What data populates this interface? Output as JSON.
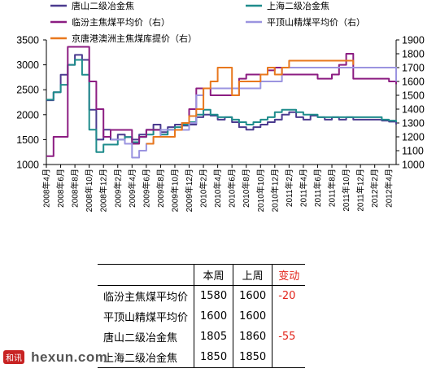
{
  "chart_data": {
    "type": "line",
    "title": "",
    "x_tick_labels": [
      "2008年4月",
      "2008年6月",
      "2008年8月",
      "2008年10月",
      "2008年12月",
      "2009年2月",
      "2009年4月",
      "2009年6月",
      "2009年8月",
      "2009年10月",
      "2009年12月",
      "2010年2月",
      "2010年4月",
      "2010年6月",
      "2010年8月",
      "2010年10月",
      "2010年12月",
      "2011年2月",
      "2011年4月",
      "2011年6月",
      "2011年8月",
      "2011年10月",
      "2011年12月",
      "2012年2月",
      "2012年4月"
    ],
    "x_start": "2008-04",
    "x_end": "2012-05",
    "y_left": {
      "ylim": [
        1000,
        3500
      ],
      "ticks": [
        "1000",
        "1500",
        "2000",
        "2500",
        "3000",
        "3500"
      ]
    },
    "y_right": {
      "ylim": [
        1000,
        1900
      ],
      "ticks": [
        "1000",
        "1100",
        "1200",
        "1300",
        "1400",
        "1500",
        "1600",
        "1700",
        "1800",
        "1900"
      ]
    },
    "grid": false,
    "legend_position": "top",
    "series": [
      {
        "name": "唐山二级冶金焦",
        "color": "#4b3b8f",
        "axis": "left",
        "points": [
          [
            "2008-04",
            2290
          ],
          [
            "2008-05",
            2450
          ],
          [
            "2008-06",
            2800
          ],
          [
            "2008-07",
            3000
          ],
          [
            "2008-08",
            3200
          ],
          [
            "2008-09",
            3100
          ],
          [
            "2008-10",
            2100
          ],
          [
            "2008-11",
            1500
          ],
          [
            "2008-12",
            1700
          ],
          [
            "2009-01",
            1500
          ],
          [
            "2009-02",
            1600
          ],
          [
            "2009-03",
            1550
          ],
          [
            "2009-04",
            1500
          ],
          [
            "2009-05",
            1600
          ],
          [
            "2009-06",
            1700
          ],
          [
            "2009-07",
            1800
          ],
          [
            "2009-08",
            1650
          ],
          [
            "2009-09",
            1750
          ],
          [
            "2009-10",
            1800
          ],
          [
            "2009-11",
            1780
          ],
          [
            "2009-12",
            1800
          ],
          [
            "2010-01",
            1950
          ],
          [
            "2010-02",
            2000
          ],
          [
            "2010-03",
            1980
          ],
          [
            "2010-04",
            1900
          ],
          [
            "2010-05",
            1950
          ],
          [
            "2010-06",
            1850
          ],
          [
            "2010-07",
            1750
          ],
          [
            "2010-08",
            1700
          ],
          [
            "2010-09",
            1750
          ],
          [
            "2010-10",
            1800
          ],
          [
            "2010-11",
            1850
          ],
          [
            "2010-12",
            1900
          ],
          [
            "2011-01",
            2000
          ],
          [
            "2011-02",
            2050
          ],
          [
            "2011-03",
            1950
          ],
          [
            "2011-04",
            1900
          ],
          [
            "2011-05",
            1980
          ],
          [
            "2011-06",
            1950
          ],
          [
            "2011-07",
            1900
          ],
          [
            "2011-08",
            1950
          ],
          [
            "2011-09",
            1900
          ],
          [
            "2011-10",
            1950
          ],
          [
            "2011-11",
            1900
          ],
          [
            "2011-12",
            1900
          ],
          [
            "2012-01",
            1900
          ],
          [
            "2012-02",
            1900
          ],
          [
            "2012-03",
            1880
          ],
          [
            "2012-04",
            1860
          ],
          [
            "2012-05",
            1805
          ]
        ]
      },
      {
        "name": "上海二级冶金焦",
        "color": "#1f8c8c",
        "axis": "left",
        "points": [
          [
            "2008-04",
            2300
          ],
          [
            "2008-05",
            2450
          ],
          [
            "2008-06",
            2600
          ],
          [
            "2008-07",
            3000
          ],
          [
            "2008-08",
            3100
          ],
          [
            "2008-09",
            2800
          ],
          [
            "2008-10",
            1700
          ],
          [
            "2008-11",
            1250
          ],
          [
            "2008-12",
            1400
          ],
          [
            "2009-01",
            1400
          ],
          [
            "2009-02",
            1500
          ],
          [
            "2009-03",
            1550
          ],
          [
            "2009-04",
            1450
          ],
          [
            "2009-05",
            1550
          ],
          [
            "2009-06",
            1600
          ],
          [
            "2009-07",
            1700
          ],
          [
            "2009-08",
            1600
          ],
          [
            "2009-09",
            1700
          ],
          [
            "2009-10",
            1750
          ],
          [
            "2009-11",
            1800
          ],
          [
            "2009-12",
            1850
          ],
          [
            "2010-01",
            2000
          ],
          [
            "2010-02",
            2100
          ],
          [
            "2010-03",
            2000
          ],
          [
            "2010-04",
            1950
          ],
          [
            "2010-05",
            1950
          ],
          [
            "2010-06",
            1900
          ],
          [
            "2010-07",
            1850
          ],
          [
            "2010-08",
            1800
          ],
          [
            "2010-09",
            1850
          ],
          [
            "2010-10",
            1900
          ],
          [
            "2010-11",
            1950
          ],
          [
            "2010-12",
            2050
          ],
          [
            "2011-01",
            2100
          ],
          [
            "2011-02",
            2100
          ],
          [
            "2011-03",
            2050
          ],
          [
            "2011-04",
            2000
          ],
          [
            "2011-05",
            2000
          ],
          [
            "2011-06",
            1950
          ],
          [
            "2011-07",
            1950
          ],
          [
            "2011-08",
            1950
          ],
          [
            "2011-09",
            1950
          ],
          [
            "2011-10",
            1950
          ],
          [
            "2011-11",
            1950
          ],
          [
            "2011-12",
            1950
          ],
          [
            "2012-01",
            1950
          ],
          [
            "2012-02",
            1950
          ],
          [
            "2012-03",
            1900
          ],
          [
            "2012-04",
            1880
          ],
          [
            "2012-05",
            1850
          ]
        ]
      },
      {
        "name": "临汾主焦煤平均价（右）",
        "color": "#8c1d82",
        "axis": "right",
        "points": [
          [
            "2008-04",
            1060
          ],
          [
            "2008-05",
            1200
          ],
          [
            "2008-06",
            1200
          ],
          [
            "2008-07",
            1200
          ],
          [
            "2008-07",
            1850
          ],
          [
            "2008-08",
            1850
          ],
          [
            "2008-09",
            1850
          ],
          [
            "2008-10",
            1600
          ],
          [
            "2008-11",
            1400
          ],
          [
            "2008-12",
            1200
          ],
          [
            "2009-01",
            1250
          ],
          [
            "2009-02",
            1250
          ],
          [
            "2009-03",
            1250
          ],
          [
            "2009-04",
            1150
          ],
          [
            "2009-05",
            1200
          ],
          [
            "2009-06",
            1250
          ],
          [
            "2009-07",
            1250
          ],
          [
            "2009-08",
            1250
          ],
          [
            "2009-09",
            1250
          ],
          [
            "2009-10",
            1250
          ],
          [
            "2009-11",
            1300
          ],
          [
            "2009-12",
            1400
          ],
          [
            "2010-01",
            1550
          ],
          [
            "2010-02",
            1550
          ],
          [
            "2010-03",
            1500
          ],
          [
            "2010-04",
            1500
          ],
          [
            "2010-05",
            1500
          ],
          [
            "2010-06",
            1500
          ],
          [
            "2010-07",
            1620
          ],
          [
            "2010-08",
            1650
          ],
          [
            "2010-09",
            1650
          ],
          [
            "2010-10",
            1650
          ],
          [
            "2010-11",
            1680
          ],
          [
            "2010-12",
            1700
          ],
          [
            "2011-01",
            1650
          ],
          [
            "2011-02",
            1650
          ],
          [
            "2011-03",
            1650
          ],
          [
            "2011-04",
            1650
          ],
          [
            "2011-05",
            1650
          ],
          [
            "2011-06",
            1620
          ],
          [
            "2011-07",
            1620
          ],
          [
            "2011-08",
            1650
          ],
          [
            "2011-09",
            1720
          ],
          [
            "2011-10",
            1800
          ],
          [
            "2011-11",
            1620
          ],
          [
            "2011-12",
            1620
          ],
          [
            "2012-01",
            1620
          ],
          [
            "2012-02",
            1620
          ],
          [
            "2012-03",
            1620
          ],
          [
            "2012-04",
            1600
          ],
          [
            "2012-05",
            1580
          ]
        ]
      },
      {
        "name": "平顶山精煤平均价（右）",
        "color": "#9b94e0",
        "axis": "right",
        "points": [
          [
            "2009-01",
            1180
          ],
          [
            "2009-02",
            1180
          ],
          [
            "2009-03",
            1150
          ],
          [
            "2009-04",
            1050
          ],
          [
            "2009-05",
            1100
          ],
          [
            "2009-06",
            1150
          ],
          [
            "2009-07",
            1200
          ],
          [
            "2009-08",
            1250
          ],
          [
            "2009-09",
            1250
          ],
          [
            "2009-10",
            1250
          ],
          [
            "2009-11",
            1250
          ],
          [
            "2009-12",
            1300
          ],
          [
            "2010-01",
            1500
          ],
          [
            "2010-02",
            1550
          ],
          [
            "2010-03",
            1550
          ],
          [
            "2010-04",
            1550
          ],
          [
            "2010-05",
            1550
          ],
          [
            "2010-06",
            1550
          ],
          [
            "2010-07",
            1550
          ],
          [
            "2010-08",
            1550
          ],
          [
            "2010-09",
            1550
          ],
          [
            "2010-10",
            1600
          ],
          [
            "2010-11",
            1600
          ],
          [
            "2010-12",
            1600
          ],
          [
            "2011-01",
            1700
          ],
          [
            "2011-02",
            1700
          ],
          [
            "2011-03",
            1700
          ],
          [
            "2011-04",
            1700
          ],
          [
            "2011-05",
            1700
          ],
          [
            "2011-06",
            1700
          ],
          [
            "2011-07",
            1700
          ],
          [
            "2011-08",
            1700
          ],
          [
            "2011-09",
            1700
          ],
          [
            "2011-10",
            1700
          ],
          [
            "2011-11",
            1700
          ],
          [
            "2011-12",
            1700
          ],
          [
            "2012-01",
            1700
          ],
          [
            "2012-02",
            1700
          ],
          [
            "2012-03",
            1700
          ],
          [
            "2012-04",
            1700
          ],
          [
            "2012-05",
            1600
          ]
        ]
      },
      {
        "name": "京唐港澳洲主焦煤库提价（右）",
        "color": "#e8781e",
        "axis": "right",
        "points": [
          [
            "2009-06",
            1150
          ],
          [
            "2009-07",
            1200
          ],
          [
            "2009-08",
            1200
          ],
          [
            "2009-09",
            1200
          ],
          [
            "2009-10",
            1250
          ],
          [
            "2009-11",
            1300
          ],
          [
            "2009-12",
            1350
          ],
          [
            "2010-01",
            1400
          ],
          [
            "2010-02",
            1550
          ],
          [
            "2010-03",
            1600
          ],
          [
            "2010-04",
            1700
          ],
          [
            "2010-05",
            1700
          ],
          [
            "2010-06",
            1500
          ],
          [
            "2010-07",
            1600
          ],
          [
            "2010-08",
            1600
          ],
          [
            "2010-09",
            1600
          ],
          [
            "2010-10",
            1650
          ],
          [
            "2010-11",
            1700
          ],
          [
            "2010-12",
            1650
          ],
          [
            "2011-01",
            1700
          ],
          [
            "2011-02",
            1750
          ],
          [
            "2011-03",
            1750
          ],
          [
            "2011-04",
            1750
          ],
          [
            "2011-05",
            1750
          ],
          [
            "2011-06",
            1750
          ],
          [
            "2011-07",
            1750
          ],
          [
            "2011-08",
            1750
          ],
          [
            "2011-09",
            1750
          ],
          [
            "2011-10",
            1750
          ],
          [
            "2011-11",
            1720
          ]
        ]
      }
    ]
  },
  "table": {
    "headers": [
      "",
      "本周",
      "上周",
      "变动"
    ],
    "rows": [
      [
        "临汾主焦煤平均价",
        "1580",
        "1600",
        "-20"
      ],
      [
        "平顶山精煤平均价",
        "1600",
        "1600",
        ""
      ],
      [
        "唐山二级冶金焦",
        "1805",
        "1860",
        "-55"
      ],
      [
        "上海二级冶金焦",
        "1850",
        "1850",
        ""
      ]
    ]
  },
  "watermark": {
    "logo_text": "和讯",
    "site_text": "hexun.com"
  }
}
